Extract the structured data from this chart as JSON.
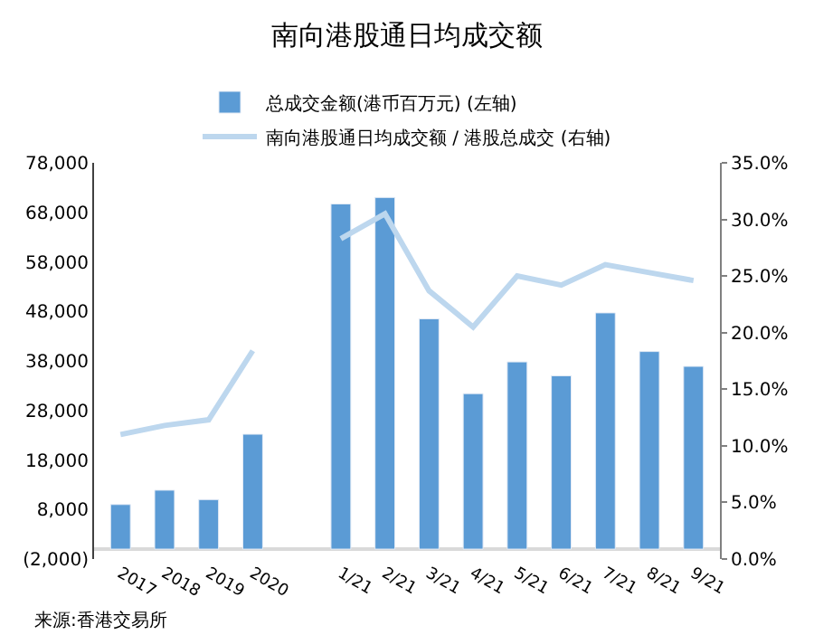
{
  "chart_data": {
    "type": "bar",
    "title": "南向港股通日均成交额",
    "categories": [
      "2017",
      "2018",
      "2019",
      "2020",
      null,
      "1/21",
      "2/21",
      "3/21",
      "4/21",
      "5/21",
      "6/21",
      "7/21",
      "8/21",
      "9/21"
    ],
    "series": [
      {
        "name": "总成交金额(港币百万元) (左轴)",
        "color": "#5b9bd5",
        "values": [
          9000,
          11900,
          10000,
          23200,
          null,
          69700,
          71000,
          46500,
          31400,
          37800,
          35000,
          47700,
          39900,
          36900
        ]
      },
      {
        "name": "南向港股通日均成交额 / 港股总成交 (右轴)",
        "type": "line",
        "axis": "y2",
        "color": "#bdd7ee",
        "values": [
          11.0,
          11.8,
          12.3,
          18.4,
          null,
          28.3,
          30.5,
          23.7,
          20.5,
          25.0,
          24.2,
          26.0,
          25.3,
          24.6
        ]
      }
    ],
    "ylim": [
      -2000,
      78000
    ],
    "yticks": [
      {
        "value": -2000,
        "label": "(2,000)"
      },
      {
        "value": 8000,
        "label": "8,000"
      },
      {
        "value": 18000,
        "label": "18,000"
      },
      {
        "value": 28000,
        "label": "28,000"
      },
      {
        "value": 38000,
        "label": "38,000"
      },
      {
        "value": 48000,
        "label": "48,000"
      },
      {
        "value": 58000,
        "label": "58,000"
      },
      {
        "value": 68000,
        "label": "68,000"
      },
      {
        "value": 78000,
        "label": "78,000"
      }
    ],
    "y2lim": [
      0,
      35
    ],
    "y2ticks": [
      {
        "value": 0,
        "label": "0.0%"
      },
      {
        "value": 5,
        "label": "5.0%"
      },
      {
        "value": 10,
        "label": "10.0%"
      },
      {
        "value": 15,
        "label": "15.0%"
      },
      {
        "value": 20,
        "label": "20.0%"
      },
      {
        "value": 25,
        "label": "25.0%"
      },
      {
        "value": 30,
        "label": "30.0%"
      },
      {
        "value": 35,
        "label": "35.0%"
      }
    ],
    "annotations": [
      "来源:香港交易所"
    ],
    "legend": "top",
    "marker": "none",
    "line_style": "solid"
  }
}
